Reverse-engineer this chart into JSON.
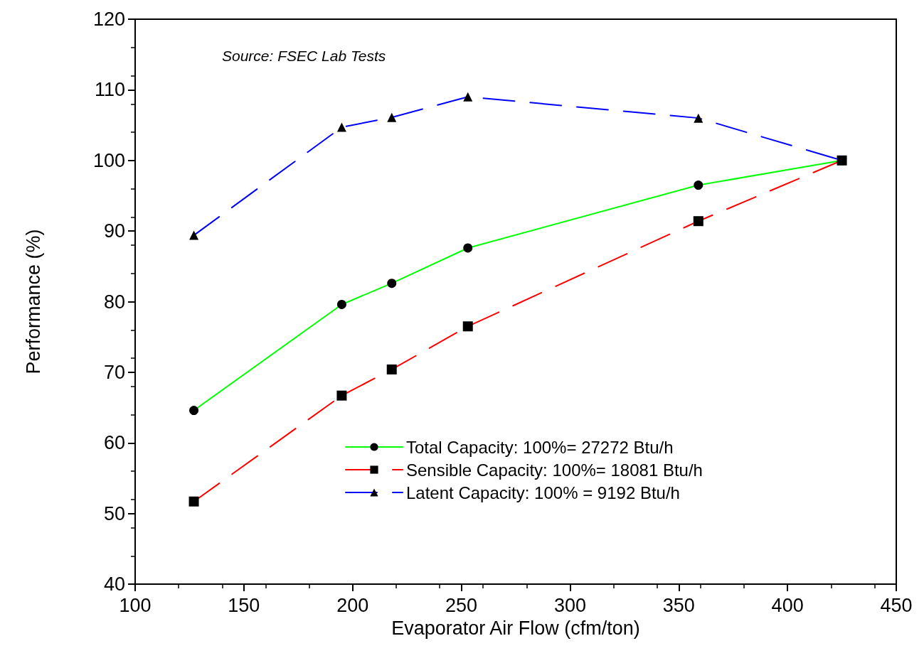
{
  "chart_data": {
    "type": "line",
    "xlabel": "Evaporator Air Flow (cfm/ton)",
    "ylabel": "Performance (%)",
    "annotations": [
      "Source: FSEC Lab Tests"
    ],
    "x": [
      127,
      195,
      218,
      253,
      359,
      425
    ],
    "series": [
      {
        "name": "Total Capacity: 100%= 27272 Btu/h",
        "color": "#00ff00",
        "marker": "circle",
        "line_style": "solid",
        "values": [
          64.6,
          79.6,
          82.6,
          87.6,
          96.5,
          100
        ]
      },
      {
        "name": "Sensible Capacity: 100%= 18081 Btu/h",
        "color": "#ff0000",
        "marker": "square",
        "line_style": "dashed",
        "values": [
          51.7,
          66.7,
          70.4,
          76.5,
          91.4,
          100
        ]
      },
      {
        "name": "Latent Capacity: 100% = 9192 Btu/h",
        "color": "#0000ff",
        "marker": "triangle",
        "line_style": "dashed",
        "values": [
          89.4,
          104.7,
          106.1,
          109.0,
          106.0,
          100
        ]
      }
    ],
    "xlim": [
      100,
      450
    ],
    "xticks": [
      100,
      150,
      200,
      250,
      300,
      350,
      400,
      450
    ],
    "ylim": [
      40,
      120
    ],
    "yticks": [
      40,
      50,
      60,
      70,
      80,
      90,
      100,
      110,
      120
    ],
    "grid": false,
    "legend": "bottom right"
  }
}
